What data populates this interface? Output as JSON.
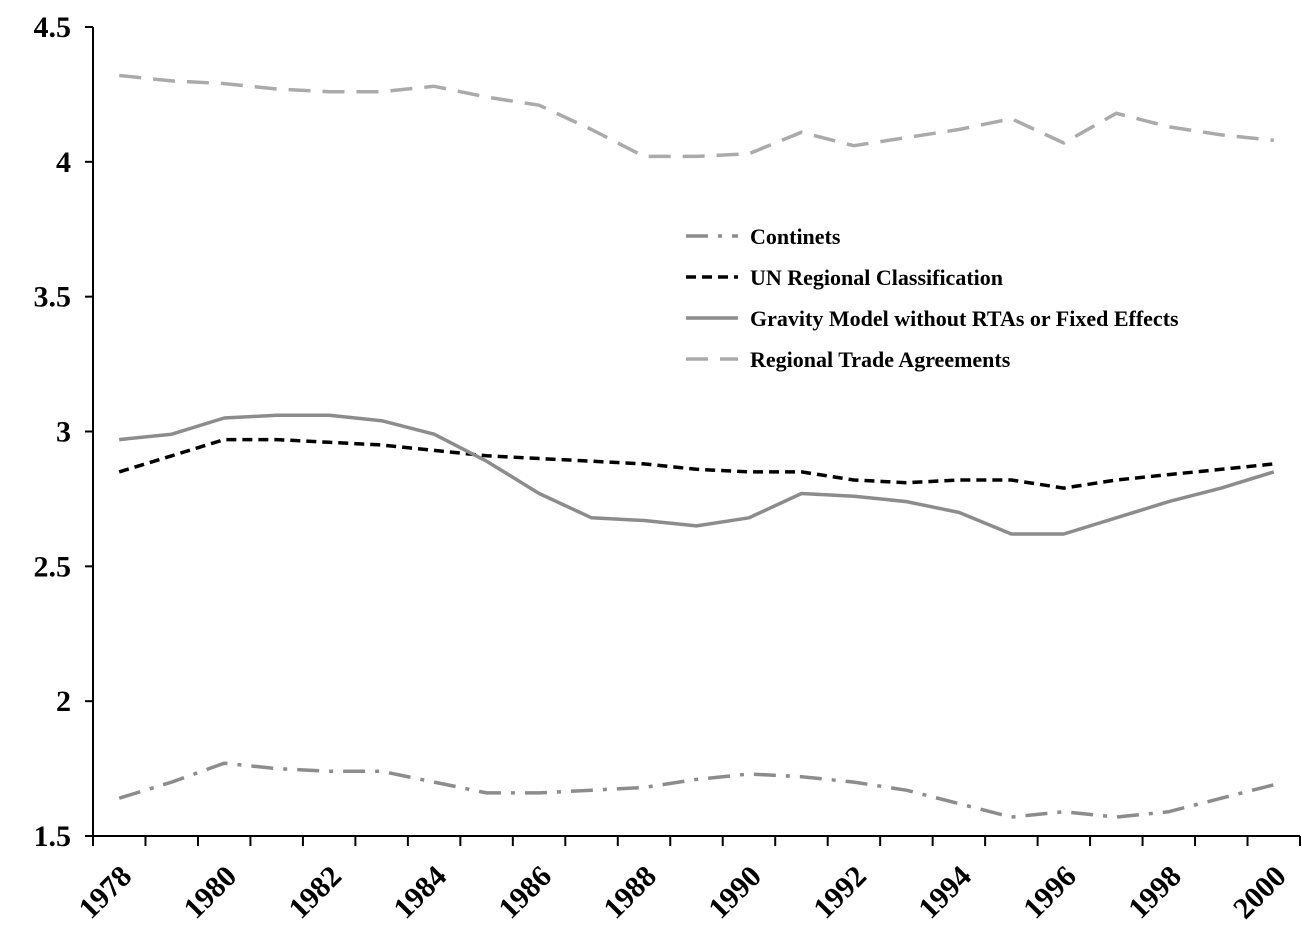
{
  "chart_data": {
    "type": "line",
    "title": "",
    "xlabel": "",
    "ylabel": "",
    "x": [
      1978,
      1979,
      1980,
      1981,
      1982,
      1983,
      1984,
      1985,
      1986,
      1987,
      1988,
      1989,
      1990,
      1991,
      1992,
      1993,
      1994,
      1995,
      1996,
      1997,
      1998,
      1999,
      2000
    ],
    "x_tick_labels": [
      "1978",
      "1980",
      "1982",
      "1984",
      "1986",
      "1988",
      "1990",
      "1992",
      "1994",
      "1996",
      "1998",
      "2000"
    ],
    "y_tick_labels": [
      "1.5",
      "2",
      "2.5",
      "3",
      "3.5",
      "4",
      "4.5"
    ],
    "ylim": [
      1.5,
      4.5
    ],
    "grid": false,
    "legend_position": "top-right",
    "series": [
      {
        "name": "Continets",
        "color": "#8c8c8c",
        "dash": "dash-dot",
        "values": [
          1.64,
          1.7,
          1.77,
          1.75,
          1.74,
          1.74,
          1.7,
          1.66,
          1.66,
          1.67,
          1.68,
          1.71,
          1.73,
          1.72,
          1.7,
          1.67,
          1.62,
          1.57,
          1.59,
          1.57,
          1.59,
          1.64,
          1.69
        ]
      },
      {
        "name": "UN Regional Classification",
        "color": "#000000",
        "dash": "short-dash",
        "values": [
          2.85,
          2.91,
          2.97,
          2.97,
          2.96,
          2.95,
          2.93,
          2.91,
          2.9,
          2.89,
          2.88,
          2.86,
          2.85,
          2.85,
          2.82,
          2.81,
          2.82,
          2.82,
          2.79,
          2.82,
          2.84,
          2.86,
          2.88
        ]
      },
      {
        "name": "Gravity Model without RTAs or Fixed Effects",
        "color": "#8c8c8c",
        "dash": "solid",
        "values": [
          2.97,
          2.99,
          3.05,
          3.06,
          3.06,
          3.04,
          2.99,
          2.89,
          2.77,
          2.68,
          2.67,
          2.65,
          2.68,
          2.77,
          2.76,
          2.74,
          2.7,
          2.62,
          2.62,
          2.68,
          2.74,
          2.79,
          2.85
        ]
      },
      {
        "name": "Regional Trade Agreements",
        "color": "#aaaaaa",
        "dash": "long-dash",
        "values": [
          4.32,
          4.3,
          4.29,
          4.27,
          4.26,
          4.26,
          4.28,
          4.24,
          4.21,
          4.12,
          4.02,
          4.02,
          4.03,
          4.11,
          4.06,
          4.09,
          4.12,
          4.16,
          4.07,
          4.18,
          4.13,
          4.1,
          4.08
        ]
      }
    ]
  }
}
